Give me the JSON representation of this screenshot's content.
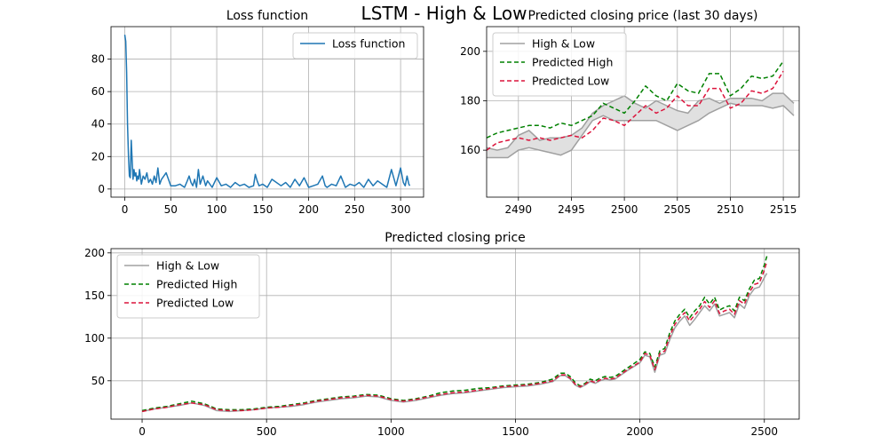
{
  "figure": {
    "suptitle": "LSTM - High & Low"
  },
  "colors": {
    "loss": "#1f77b4",
    "high_low": "#a0a0a0",
    "high_low_fill": "#e0e0e0",
    "pred_high": "#008000",
    "pred_low": "#dc143c",
    "grid": "#b0b0b0"
  },
  "chart_data": [
    {
      "id": "loss",
      "type": "line",
      "title": "Loss function",
      "xlim": [
        -15,
        325
      ],
      "ylim": [
        -5,
        100
      ],
      "xticks": [
        0,
        50,
        100,
        150,
        200,
        250,
        300
      ],
      "yticks": [
        0,
        20,
        40,
        60,
        80
      ],
      "grid": true,
      "legend": {
        "position": "upper-right"
      },
      "series": [
        {
          "name": "Loss function",
          "style": "solid",
          "x": [
            0,
            1,
            2,
            3,
            4,
            5,
            6,
            7,
            8,
            9,
            10,
            11,
            12,
            13,
            14,
            15,
            16,
            18,
            20,
            22,
            24,
            26,
            28,
            30,
            32,
            34,
            36,
            38,
            40,
            45,
            50,
            55,
            60,
            65,
            68,
            70,
            72,
            74,
            76,
            78,
            80,
            82,
            85,
            88,
            90,
            95,
            100,
            105,
            110,
            115,
            120,
            125,
            130,
            135,
            140,
            142,
            144,
            146,
            150,
            155,
            160,
            170,
            175,
            180,
            185,
            190,
            195,
            200,
            205,
            210,
            215,
            218,
            220,
            225,
            230,
            235,
            240,
            245,
            250,
            255,
            260,
            265,
            270,
            275,
            280,
            285,
            290,
            295,
            300,
            303,
            305,
            307,
            309,
            310
          ],
          "y": [
            95,
            91,
            72,
            40,
            20,
            8,
            7,
            30,
            18,
            6,
            12,
            8,
            10,
            5,
            8,
            6,
            12,
            3,
            8,
            6,
            10,
            4,
            6,
            3,
            8,
            4,
            13,
            3,
            6,
            10,
            2,
            2,
            3,
            1,
            5,
            8,
            4,
            2,
            6,
            1,
            12,
            3,
            8,
            2,
            5,
            1,
            7,
            2,
            3,
            1,
            4,
            2,
            3,
            1,
            2,
            9,
            5,
            2,
            3,
            1,
            6,
            2,
            4,
            1,
            6,
            2,
            7,
            1,
            2,
            3,
            8,
            2,
            1,
            3,
            2,
            8,
            1,
            3,
            2,
            4,
            1,
            6,
            2,
            5,
            3,
            1,
            12,
            2,
            13,
            4,
            2,
            8,
            3,
            2
          ]
        }
      ]
    },
    {
      "id": "last30",
      "type": "line",
      "title": "Predicted closing price (last 30 days)",
      "xlim": [
        2487,
        2516.5
      ],
      "ylim": [
        141,
        210
      ],
      "xticks": [
        2490,
        2495,
        2500,
        2505,
        2510,
        2515
      ],
      "yticks": [
        160,
        180,
        200
      ],
      "grid": true,
      "legend": {
        "position": "upper-left"
      },
      "band": {
        "name": "High & Low",
        "x": [
          2487,
          2488,
          2489,
          2490,
          2491,
          2492,
          2493,
          2494,
          2495,
          2496,
          2497,
          2498,
          2499,
          2500,
          2501,
          2502,
          2503,
          2504,
          2505,
          2506,
          2507,
          2508,
          2509,
          2510,
          2511,
          2512,
          2513,
          2514,
          2515,
          2516
        ],
        "high": [
          161,
          160,
          161,
          166,
          168,
          164,
          165,
          165,
          166,
          169,
          175,
          178,
          180,
          182,
          179,
          177,
          180,
          178,
          176,
          175,
          180,
          181,
          179,
          181,
          181,
          181,
          180,
          183,
          183,
          179
        ],
        "low": [
          157,
          157,
          157,
          160,
          161,
          160,
          159,
          158,
          160,
          166,
          172,
          174,
          172,
          172,
          172,
          172,
          172,
          170,
          168,
          170,
          172,
          175,
          177,
          179,
          178,
          178,
          178,
          177,
          178,
          174
        ]
      },
      "series": [
        {
          "name": "Predicted High",
          "style": "dashed",
          "x": [
            2487,
            2488,
            2489,
            2490,
            2491,
            2492,
            2493,
            2494,
            2495,
            2496,
            2497,
            2498,
            2499,
            2500,
            2501,
            2502,
            2503,
            2504,
            2505,
            2506,
            2507,
            2508,
            2509,
            2510,
            2511,
            2512,
            2513,
            2514,
            2515
          ],
          "y": [
            165,
            167,
            168,
            169,
            170,
            170,
            169,
            171,
            170,
            172,
            174,
            179,
            177,
            175,
            180,
            186,
            182,
            180,
            187,
            184,
            183,
            191,
            191,
            182,
            185,
            190,
            189,
            190,
            196
          ]
        },
        {
          "name": "Predicted Low",
          "style": "dashed",
          "x": [
            2487,
            2488,
            2489,
            2490,
            2491,
            2492,
            2493,
            2494,
            2495,
            2496,
            2497,
            2498,
            2499,
            2500,
            2501,
            2502,
            2503,
            2504,
            2505,
            2506,
            2507,
            2508,
            2509,
            2510,
            2511,
            2512,
            2513,
            2514,
            2515
          ],
          "y": [
            160,
            163,
            164,
            165,
            164,
            165,
            164,
            165,
            166,
            165,
            168,
            173,
            172,
            170,
            174,
            178,
            175,
            177,
            182,
            178,
            178,
            185,
            185,
            177,
            179,
            184,
            183,
            185,
            192
          ]
        }
      ]
    },
    {
      "id": "full",
      "type": "line",
      "title": "Predicted closing price",
      "xlim": [
        -125,
        2640
      ],
      "ylim": [
        5,
        205
      ],
      "xticks": [
        0,
        500,
        1000,
        1500,
        2000,
        2500
      ],
      "yticks": [
        50,
        100,
        150,
        200
      ],
      "grid": true,
      "legend": {
        "position": "upper-left"
      },
      "series": [
        {
          "name": "High & Low",
          "style": "solid",
          "x": [
            0,
            50,
            100,
            150,
            200,
            250,
            300,
            350,
            400,
            450,
            500,
            550,
            600,
            650,
            700,
            750,
            800,
            850,
            900,
            950,
            1000,
            1050,
            1100,
            1150,
            1200,
            1250,
            1300,
            1350,
            1400,
            1450,
            1500,
            1550,
            1600,
            1650,
            1680,
            1700,
            1720,
            1740,
            1760,
            1780,
            1800,
            1820,
            1840,
            1860,
            1880,
            1900,
            1950,
            2000,
            2020,
            2040,
            2060,
            2080,
            2100,
            2120,
            2140,
            2160,
            2180,
            2200,
            2220,
            2240,
            2260,
            2280,
            2300,
            2320,
            2340,
            2360,
            2380,
            2400,
            2420,
            2440,
            2460,
            2480,
            2500,
            2510
          ],
          "y": [
            14,
            17,
            19,
            21,
            24,
            21,
            15,
            14,
            15,
            16,
            18,
            19,
            20,
            22,
            25,
            27,
            29,
            30,
            32,
            31,
            27,
            25,
            27,
            30,
            33,
            35,
            36,
            38,
            40,
            42,
            43,
            44,
            46,
            49,
            56,
            56,
            52,
            45,
            42,
            45,
            49,
            47,
            50,
            52,
            51,
            52,
            62,
            71,
            80,
            78,
            60,
            80,
            82,
            98,
            112,
            120,
            126,
            115,
            122,
            130,
            138,
            132,
            140,
            126,
            128,
            130,
            124,
            140,
            135,
            150,
            158,
            160,
            171,
            176
          ]
        },
        {
          "name": "Predicted High",
          "style": "dashed",
          "x": [
            0,
            50,
            100,
            150,
            200,
            250,
            300,
            350,
            400,
            450,
            500,
            550,
            600,
            650,
            700,
            750,
            800,
            850,
            900,
            950,
            1000,
            1050,
            1100,
            1150,
            1200,
            1250,
            1300,
            1350,
            1400,
            1450,
            1500,
            1550,
            1600,
            1650,
            1680,
            1700,
            1720,
            1740,
            1760,
            1780,
            1800,
            1820,
            1840,
            1860,
            1880,
            1900,
            1950,
            2000,
            2020,
            2040,
            2060,
            2080,
            2100,
            2120,
            2140,
            2160,
            2180,
            2200,
            2220,
            2240,
            2260,
            2280,
            2300,
            2320,
            2340,
            2360,
            2380,
            2400,
            2420,
            2440,
            2460,
            2480,
            2500,
            2510
          ],
          "y": [
            15,
            18,
            20,
            23,
            26,
            23,
            17,
            16,
            16,
            17,
            19,
            20,
            22,
            24,
            27,
            29,
            31,
            32,
            34,
            33,
            29,
            27,
            29,
            32,
            36,
            38,
            39,
            41,
            42,
            44,
            45,
            46,
            48,
            52,
            59,
            59,
            55,
            48,
            44,
            47,
            52,
            50,
            53,
            55,
            54,
            55,
            65,
            75,
            84,
            82,
            66,
            85,
            88,
            106,
            120,
            128,
            134,
            124,
            132,
            138,
            148,
            140,
            148,
            133,
            136,
            138,
            132,
            148,
            144,
            158,
            168,
            170,
            186,
            196
          ]
        },
        {
          "name": "Predicted Low",
          "style": "dashed",
          "x": [
            0,
            50,
            100,
            150,
            200,
            250,
            300,
            350,
            400,
            450,
            500,
            550,
            600,
            650,
            700,
            750,
            800,
            850,
            900,
            950,
            1000,
            1050,
            1100,
            1150,
            1200,
            1250,
            1300,
            1350,
            1400,
            1450,
            1500,
            1550,
            1600,
            1650,
            1680,
            1700,
            1720,
            1740,
            1760,
            1780,
            1800,
            1820,
            1840,
            1860,
            1880,
            1900,
            1950,
            2000,
            2020,
            2040,
            2060,
            2080,
            2100,
            2120,
            2140,
            2160,
            2180,
            2200,
            2220,
            2240,
            2260,
            2280,
            2300,
            2320,
            2340,
            2360,
            2380,
            2400,
            2420,
            2440,
            2460,
            2480,
            2500,
            2510
          ],
          "y": [
            14,
            17,
            19,
            22,
            24,
            22,
            16,
            15,
            15,
            16,
            18,
            19,
            21,
            23,
            26,
            28,
            30,
            31,
            33,
            32,
            28,
            26,
            28,
            31,
            34,
            36,
            37,
            39,
            41,
            43,
            44,
            45,
            47,
            50,
            57,
            57,
            53,
            46,
            43,
            46,
            50,
            48,
            51,
            53,
            52,
            53,
            63,
            72,
            82,
            80,
            63,
            82,
            85,
            102,
            116,
            124,
            130,
            120,
            127,
            134,
            143,
            136,
            144,
            129,
            132,
            134,
            128,
            144,
            140,
            154,
            163,
            165,
            180,
            190
          ]
        }
      ]
    }
  ]
}
